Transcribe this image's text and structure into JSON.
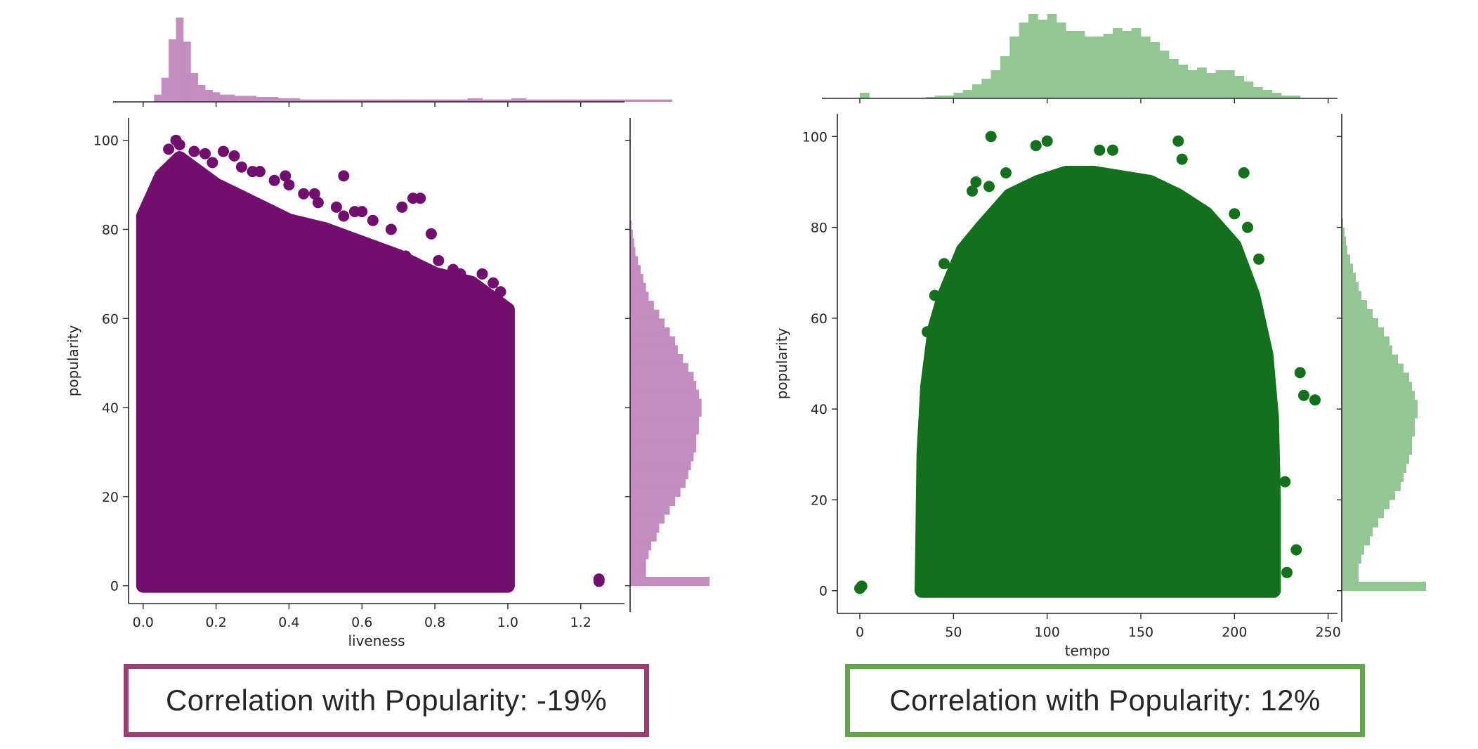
{
  "charts": [
    {
      "chart_data": {
        "type": "scatter",
        "xlabel": "liveness",
        "ylabel": "popularity",
        "xlim": [
          -0.04,
          1.32
        ],
        "ylim": [
          -4,
          105
        ],
        "xticks": [
          "0.0",
          "0.2",
          "0.4",
          "0.6",
          "0.8",
          "1.0",
          "1.2"
        ],
        "xtick_values": [
          0,
          0.2,
          0.4,
          0.6,
          0.8,
          1.0,
          1.2
        ],
        "yticks": [
          "0",
          "20",
          "40",
          "60",
          "80",
          "100"
        ],
        "ytick_values": [
          0,
          20,
          40,
          60,
          80,
          100
        ],
        "scatter_color": "#720e6e",
        "hist_color": "#c38dc0",
        "dense_region": {
          "x_range": [
            0.0,
            1.0
          ],
          "upper_boundary": [
            [
              0.0,
              83
            ],
            [
              0.05,
              92
            ],
            [
              0.1,
              96
            ],
            [
              0.2,
              90
            ],
            [
              0.3,
              86
            ],
            [
              0.4,
              82
            ],
            [
              0.5,
              80
            ],
            [
              0.6,
              77
            ],
            [
              0.7,
              74
            ],
            [
              0.8,
              70
            ],
            [
              0.9,
              68
            ],
            [
              1.0,
              62
            ]
          ]
        },
        "outliers": [
          [
            0.09,
            100
          ],
          [
            0.1,
            99
          ],
          [
            0.07,
            98
          ],
          [
            0.14,
            97.5
          ],
          [
            0.17,
            97
          ],
          [
            0.22,
            97.5
          ],
          [
            0.25,
            96.5
          ],
          [
            0.19,
            95
          ],
          [
            0.27,
            94
          ],
          [
            0.3,
            93
          ],
          [
            0.32,
            93
          ],
          [
            0.39,
            92
          ],
          [
            0.55,
            92
          ],
          [
            0.36,
            91
          ],
          [
            0.4,
            90
          ],
          [
            0.44,
            88
          ],
          [
            0.47,
            88
          ],
          [
            0.48,
            86
          ],
          [
            0.58,
            84
          ],
          [
            0.6,
            84
          ],
          [
            0.74,
            87
          ],
          [
            0.76,
            87
          ],
          [
            0.71,
            85
          ],
          [
            0.53,
            85
          ],
          [
            0.55,
            83
          ],
          [
            0.63,
            82
          ],
          [
            0.68,
            80
          ],
          [
            0.79,
            79
          ],
          [
            0.81,
            73
          ],
          [
            0.72,
            74
          ],
          [
            0.75,
            71
          ],
          [
            0.85,
            71
          ],
          [
            0.87,
            70
          ],
          [
            0.93,
            70
          ],
          [
            0.96,
            68
          ],
          [
            0.98,
            66
          ],
          [
            0.99,
            60
          ],
          [
            1.0,
            56
          ],
          [
            1.25,
            1
          ],
          [
            1.25,
            1.5
          ]
        ],
        "marginal_x": {
          "bin_edges_start": 0.03,
          "bin_width": 0.02,
          "counts": [
            3,
            10,
            26,
            35,
            25,
            12,
            7,
            5,
            4,
            3,
            3,
            2.5,
            2.5,
            2.5,
            2,
            2,
            2,
            1.5,
            1.5,
            1.5,
            1,
            1,
            1,
            1,
            1,
            1,
            1,
            1,
            1,
            1,
            1,
            1,
            1,
            1,
            1,
            1,
            1,
            1,
            1,
            1,
            1,
            1,
            1,
            1.5,
            1.5,
            1,
            1,
            1,
            1,
            1.5,
            1.5,
            1,
            1,
            1,
            1,
            1,
            1,
            1,
            1,
            1,
            1,
            1,
            1,
            1,
            1,
            1,
            1,
            1,
            1,
            1,
            1
          ]
        },
        "marginal_y": {
          "bin_edges_start": 0,
          "bin_width": 2,
          "counts": [
            30,
            6,
            6,
            7,
            8,
            10,
            11,
            13,
            15,
            17,
            19,
            21,
            22,
            23,
            24,
            25,
            25,
            26,
            26,
            27,
            27,
            26,
            25,
            24,
            22,
            20,
            18,
            17,
            15,
            13,
            11,
            9,
            7,
            6,
            5,
            4,
            3,
            2,
            1.5,
            1,
            0.5
          ]
        }
      },
      "correlation_label": "Correlation with Popularity: -19%",
      "border_color": "#9b3f72"
    },
    {
      "chart_data": {
        "type": "scatter",
        "xlabel": "tempo",
        "ylabel": "popularity",
        "xlim": [
          -12,
          255
        ],
        "ylim": [
          -5,
          105
        ],
        "xticks": [
          "0",
          "50",
          "100",
          "150",
          "200",
          "250"
        ],
        "xtick_values": [
          0,
          50,
          100,
          150,
          200,
          250
        ],
        "yticks": [
          "0",
          "20",
          "40",
          "60",
          "80",
          "100"
        ],
        "ytick_values": [
          0,
          20,
          40,
          60,
          80,
          100
        ],
        "scatter_color": "#13701c",
        "hist_color": "#93c692",
        "dense_region": {
          "x_range": [
            32,
            220
          ],
          "envelope": [
            [
              33,
              0
            ],
            [
              34,
              30
            ],
            [
              36,
              45
            ],
            [
              40,
              58
            ],
            [
              45,
              65
            ],
            [
              55,
              75
            ],
            [
              65,
              80
            ],
            [
              80,
              87
            ],
            [
              95,
              90
            ],
            [
              110,
              92
            ],
            [
              125,
              92
            ],
            [
              140,
              91
            ],
            [
              155,
              90
            ],
            [
              170,
              87
            ],
            [
              185,
              83
            ],
            [
              200,
              76
            ],
            [
              210,
              65
            ],
            [
              217,
              52
            ],
            [
              220,
              38
            ],
            [
              221,
              20
            ],
            [
              221,
              0
            ]
          ]
        },
        "outliers": [
          [
            70,
            100
          ],
          [
            100,
            99
          ],
          [
            94,
            98
          ],
          [
            128,
            97
          ],
          [
            135,
            97
          ],
          [
            170,
            99
          ],
          [
            172,
            95
          ],
          [
            205,
            92
          ],
          [
            62,
            90
          ],
          [
            69,
            89
          ],
          [
            45,
            72
          ],
          [
            40,
            65
          ],
          [
            36,
            57
          ],
          [
            235,
            48
          ],
          [
            237,
            43
          ],
          [
            243,
            42
          ],
          [
            227,
            24
          ],
          [
            233,
            9
          ],
          [
            228,
            4
          ],
          [
            218,
            29
          ],
          [
            217,
            22
          ],
          [
            1,
            1
          ],
          [
            0,
            0.5
          ],
          [
            60,
            88
          ],
          [
            78,
            92
          ],
          [
            200,
            83
          ],
          [
            207,
            80
          ],
          [
            213,
            73
          ]
        ],
        "marginal_x": {
          "bin_edges_start": 0,
          "bin_width": 5,
          "counts": [
            2,
            0,
            0,
            0,
            0,
            0,
            0,
            0.5,
            1,
            1,
            2,
            3,
            5,
            7,
            10,
            15,
            22,
            27,
            30,
            28,
            30,
            27,
            24,
            24,
            22,
            22,
            23,
            25,
            24,
            25,
            22,
            20,
            17,
            14,
            12,
            10,
            11,
            9,
            10,
            10,
            8,
            6,
            4,
            3,
            2,
            1,
            1
          ]
        },
        "marginal_y": {
          "bin_edges_start": 0,
          "bin_width": 2,
          "counts": [
            30,
            6,
            6,
            7,
            8,
            10,
            11,
            13,
            15,
            17,
            19,
            21,
            22,
            23,
            24,
            25,
            25,
            26,
            26,
            27,
            27,
            26,
            25,
            24,
            22,
            20,
            18,
            17,
            15,
            13,
            11,
            9,
            7,
            6,
            5,
            4,
            3,
            2,
            1.5,
            1,
            0.5
          ]
        }
      },
      "correlation_label": "Correlation with Popularity: 12%",
      "border_color": "#65a34e"
    }
  ]
}
